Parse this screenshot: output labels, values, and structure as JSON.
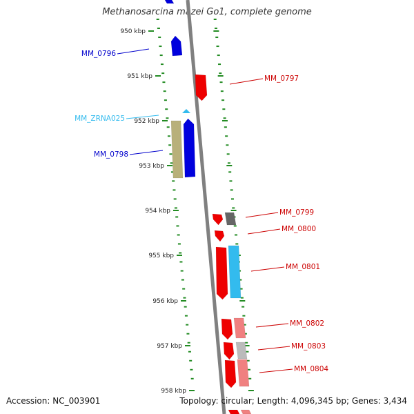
{
  "title": "Methanosarcina mazei Go1, complete genome",
  "footer": {
    "accession": "Accession: NC_003901",
    "topology": "Topology: circular; Length: 4,096,345 bp; Genes: 3,434"
  },
  "colors": {
    "backbone": "#808080",
    "tick": "#228b22",
    "gene_forward": "#0000dd",
    "gene_reverse": "#ee0000",
    "gene_reverse_light": "#f08080",
    "rna": "#33bbee",
    "pseudo": "#b8b07a",
    "grey_gene": "#666666",
    "grey_light": "#bbbbbb"
  },
  "scale_ticks": [
    {
      "label": "950 kbp",
      "kb": 950
    },
    {
      "label": "951 kbp",
      "kb": 951
    },
    {
      "label": "952 kbp",
      "kb": 952
    },
    {
      "label": "953 kbp",
      "kb": 953
    },
    {
      "label": "954 kbp",
      "kb": 954
    },
    {
      "label": "955 kbp",
      "kb": 955
    },
    {
      "label": "956 kbp",
      "kb": 956
    },
    {
      "label": "957 kbp",
      "kb": 957
    },
    {
      "label": "958 kbp",
      "kb": 958
    }
  ],
  "gene_labels": [
    {
      "name": "MM_0796",
      "color": "#0000cc"
    },
    {
      "name": "MM_0797",
      "color": "#cc0000"
    },
    {
      "name": "MM_ZRNA025",
      "color": "#33bbee"
    },
    {
      "name": "MM_0798",
      "color": "#0000cc"
    },
    {
      "name": "MM_0799",
      "color": "#cc0000"
    },
    {
      "name": "MM_0800",
      "color": "#cc0000"
    },
    {
      "name": "MM_0801",
      "color": "#cc0000"
    },
    {
      "name": "MM_0802",
      "color": "#cc0000"
    },
    {
      "name": "MM_0803",
      "color": "#cc0000"
    },
    {
      "name": "MM_0804",
      "color": "#cc0000"
    }
  ]
}
